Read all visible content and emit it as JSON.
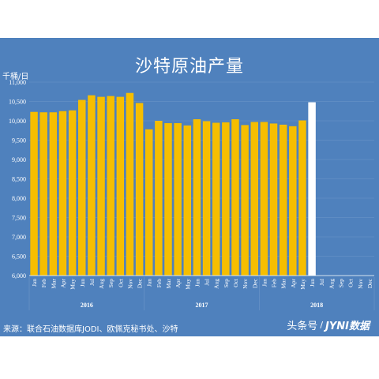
{
  "chart_data": {
    "type": "bar",
    "title": "沙特原油产量",
    "ylabel": "千桶/日",
    "ylim": [
      6000,
      11000
    ],
    "yticks": [
      "6,000",
      "6,500",
      "7,000",
      "7,500",
      "8,000",
      "8,500",
      "9,000",
      "9,500",
      "10,000",
      "10,500",
      "11,000"
    ],
    "year_labels": [
      "2016",
      "2017",
      "2018"
    ],
    "months": [
      "Jan",
      "Feb",
      "Mar",
      "Apr",
      "May",
      "Jun",
      "Jul",
      "Aug",
      "Sep",
      "Oct",
      "Nov",
      "Dec"
    ],
    "categories": [
      "Jan 2016",
      "Feb 2016",
      "Mar 2016",
      "Apr 2016",
      "May 2016",
      "Jun 2016",
      "Jul 2016",
      "Aug 2016",
      "Sep 2016",
      "Oct 2016",
      "Nov 2016",
      "Dec 2016",
      "Jan 2017",
      "Feb 2017",
      "Mar 2017",
      "Apr 2017",
      "May 2017",
      "Jun 2017",
      "Jul 2017",
      "Aug 2017",
      "Sep 2017",
      "Oct 2017",
      "Nov 2017",
      "Dec 2017",
      "Jan 2018",
      "Feb 2018",
      "Mar 2018",
      "Apr 2018",
      "May 2018",
      "Jun 2018",
      "Jul 2018",
      "Aug 2018",
      "Sep 2018",
      "Oct 2018",
      "Nov 2018",
      "Dec 2018"
    ],
    "values": [
      10230,
      10220,
      10220,
      10250,
      10270,
      10540,
      10660,
      10620,
      10640,
      10620,
      10720,
      10460,
      9780,
      10000,
      9940,
      9940,
      9880,
      10040,
      9990,
      9950,
      9960,
      10040,
      9890,
      9970,
      9970,
      9930,
      9900,
      9860,
      10010,
      10480,
      null,
      null,
      null,
      null,
      null,
      null
    ],
    "bar_color": "#f6be00",
    "highlight_color": "#ffffff",
    "highlight_index": 29,
    "grid": true,
    "legend": "none"
  },
  "source": "来源：联合石油数据库JODI、欧佩克秘书处、沙特",
  "watermark": {
    "platform": "头条号",
    "separator": "/",
    "brand": "JYNI数据"
  },
  "colors": {
    "background": "#4f81bd",
    "text": "#ffffff",
    "grid": "#6e97c9"
  }
}
